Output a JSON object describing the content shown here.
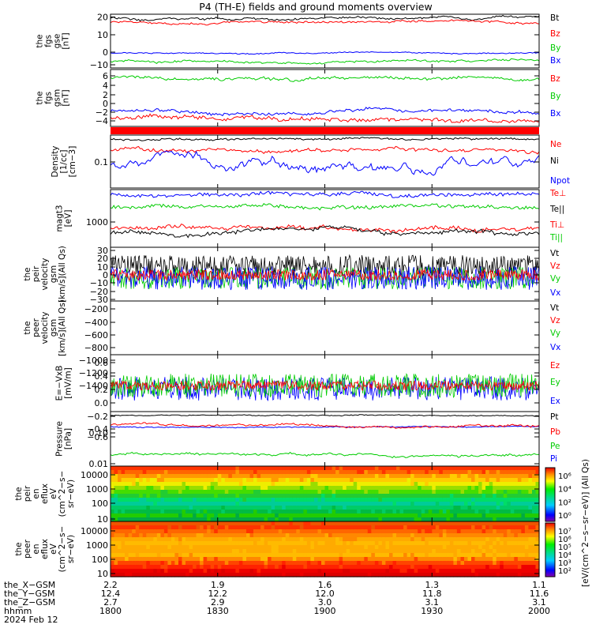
{
  "title": "P4 (TH-E) fields and ground moments overview",
  "panels": [
    {
      "id": "fgs-gse",
      "ylabel": [
        "the",
        "fgs",
        "gse",
        "[nT]"
      ],
      "yticks": [
        "20",
        "10",
        "0",
        "−10"
      ],
      "ytick_values": [
        20,
        10,
        0,
        -10
      ],
      "legend": [
        {
          "text": "Bt",
          "color": "#000000"
        },
        {
          "text": "Bz",
          "color": "#ff0000"
        },
        {
          "text": "By",
          "color": "#00cc00"
        },
        {
          "text": "Bx",
          "color": "#0000ff"
        }
      ]
    },
    {
      "id": "fgs-gsm",
      "ylabel": [
        "the",
        "fgs",
        "gsm",
        "[nT]"
      ],
      "yticks": [
        "6",
        "4",
        "2",
        "0",
        "−2",
        "−4",
        "−6"
      ],
      "ytick_values": [
        6,
        4,
        2,
        0,
        -2,
        -4,
        -6
      ],
      "legend": [
        {
          "text": "Bz",
          "color": "#ff0000"
        },
        {
          "text": "By",
          "color": "#00cc00"
        },
        {
          "text": "Bx",
          "color": "#0000ff"
        }
      ]
    },
    {
      "id": "density",
      "ylabel": [
        "Density",
        "[1/cc]",
        "[cm−3]"
      ],
      "yticks": [
        "0.1"
      ],
      "ytick_values": [
        0.1
      ],
      "legend": [
        {
          "text": "Ne",
          "color": "#ff0000"
        },
        {
          "text": "Ni",
          "color": "#000000"
        },
        {
          "text": "Npot",
          "color": "#0000ff"
        }
      ]
    },
    {
      "id": "temperature",
      "ylabel": [
        "magt3",
        "[eV]"
      ],
      "yticks": [
        "1000"
      ],
      "ytick_values": [
        1000
      ],
      "legend": [
        {
          "text": "Te⊥",
          "color": "#ff0000"
        },
        {
          "text": "Te||",
          "color": "#000000"
        },
        {
          "text": "Ti⊥",
          "color": "#ff0000"
        },
        {
          "text": "Ti||",
          "color": "#00cc00"
        }
      ]
    },
    {
      "id": "peir-velocity",
      "ylabel": [
        "the",
        "peir",
        "velocity",
        "gsm",
        "[km/s](All Qs)"
      ],
      "yticks": [
        "30",
        "20",
        "10",
        "0",
        "−10",
        "−20",
        "−30"
      ],
      "ytick_values": [
        30,
        20,
        10,
        0,
        -10,
        -20,
        -30
      ],
      "legend": [
        {
          "text": "Vt",
          "color": "#000000"
        },
        {
          "text": "Vz",
          "color": "#ff0000"
        },
        {
          "text": "Vy",
          "color": "#00cc00"
        },
        {
          "text": "Vx",
          "color": "#0000ff"
        }
      ]
    },
    {
      "id": "peer-velocity",
      "ylabel": [
        "the",
        "peer",
        "velocity",
        "gsm",
        "[km/s](All Qs)"
      ],
      "yticks": [
        "−200",
        "−400",
        "−600",
        "−800",
        "−1000",
        "−1200",
        "−1400"
      ],
      "ytick_values": [
        -200,
        -400,
        -600,
        -800,
        -1000,
        -1200,
        -1400
      ],
      "legend": [
        {
          "text": "Vt",
          "color": "#000000"
        },
        {
          "text": "Vz",
          "color": "#ff0000"
        },
        {
          "text": "Vy",
          "color": "#00cc00"
        },
        {
          "text": "Vx",
          "color": "#0000ff"
        }
      ]
    },
    {
      "id": "efield",
      "ylabel": [
        "E=−VxB",
        "[mV/m]"
      ],
      "yticks": [
        "0.6",
        "0.4",
        "0.2",
        "0.0",
        "−0.2",
        "−0.4",
        "−0.6"
      ],
      "ytick_values": [
        0.6,
        0.4,
        0.2,
        0.0,
        -0.2,
        -0.4,
        -0.6
      ],
      "legend": [
        {
          "text": "Ez",
          "color": "#ff0000"
        },
        {
          "text": "Ey",
          "color": "#00cc00"
        },
        {
          "text": "Ex",
          "color": "#0000ff"
        }
      ]
    },
    {
      "id": "pressure",
      "ylabel": [
        "Pressure",
        "[nPa]"
      ],
      "yticks": [
        "0.10",
        "0.01"
      ],
      "ytick_values": [
        0.1,
        0.01
      ],
      "legend": [
        {
          "text": "Pt",
          "color": "#000000"
        },
        {
          "text": "Pb",
          "color": "#ff0000"
        },
        {
          "text": "Pe",
          "color": "#00cc00"
        },
        {
          "text": "Pi",
          "color": "#0000ff"
        }
      ]
    },
    {
      "id": "peir-eflux",
      "ylabel": [
        "the",
        "peir",
        "en",
        "eflux",
        "eV",
        "(cm^2−s−",
        "sr−eV)"
      ],
      "yticks": [
        "10000",
        "1000",
        "100",
        "10"
      ],
      "ytick_values": [
        10000,
        1000,
        100,
        10
      ],
      "legend": []
    },
    {
      "id": "peer-eflux",
      "ylabel": [
        "the",
        "peer",
        "en",
        "eflux",
        "eV",
        "(cm^2−s−",
        "sr−eV)"
      ],
      "yticks": [
        "10000",
        "1000",
        "100",
        "10"
      ],
      "ytick_values": [
        10000,
        1000,
        100,
        10
      ],
      "legend": []
    }
  ],
  "colorbar": {
    "label": "[eV/(cm^2−s−sr−eV)] (All Qs)",
    "upper_ticks": [
      "10⁶",
      "10⁴",
      "10²",
      "10⁰"
    ],
    "lower_ticks": [
      "10⁷",
      "10⁶",
      "10⁵",
      "10⁴",
      "10³",
      "10²"
    ]
  },
  "footer": {
    "rows": [
      {
        "label": "the_X−GSM",
        "values": [
          "2.2",
          "1.9",
          "1.6",
          "1.3",
          "1.1"
        ]
      },
      {
        "label": "the_Y−GSM",
        "values": [
          "12.4",
          "12.2",
          "12.0",
          "11.8",
          "11.6"
        ]
      },
      {
        "label": "the_Z−GSM",
        "values": [
          "2.7",
          "2.9",
          "3.0",
          "3.1",
          "3.1"
        ]
      },
      {
        "label": "hhmm",
        "values": [
          "1800",
          "1830",
          "1900",
          "1930",
          "2000"
        ]
      }
    ],
    "date": "2024 Feb 12"
  },
  "chart_data": {
    "type": "line",
    "title": "P4 (TH-E) fields and ground moments overview",
    "x_ticks": [
      "1800",
      "1830",
      "1900",
      "1930",
      "2000"
    ],
    "xlabel": "hhmm",
    "xlim": [
      "1800",
      "2000"
    ],
    "grid": false,
    "legend_placement": "right",
    "series": [
      {
        "panel": "fgs-gse",
        "name": "Bt",
        "approx_level": 20
      },
      {
        "panel": "fgs-gse",
        "name": "Bz",
        "approx_level": 18
      },
      {
        "panel": "fgs-gse",
        "name": "By",
        "approx_level": -8
      },
      {
        "panel": "fgs-gse",
        "name": "Bx",
        "approx_level": -1
      },
      {
        "panel": "fgs-gsm",
        "name": "Bz",
        "approx_level": -5
      },
      {
        "panel": "fgs-gsm",
        "name": "By",
        "approx_level": 4
      },
      {
        "panel": "fgs-gsm",
        "name": "Bx",
        "approx_level": -3.5
      },
      {
        "panel": "density",
        "name": "Ni",
        "approx_level": 0.3
      },
      {
        "panel": "density",
        "name": "Ne",
        "approx_level": 0.2
      },
      {
        "panel": "density",
        "name": "Npot",
        "approx_level": 0.03
      },
      {
        "panel": "peir-velocity",
        "name": "Vt",
        "approx_level": 15
      },
      {
        "panel": "peir-velocity",
        "name": "Vz",
        "approx_level": 5
      },
      {
        "panel": "efield",
        "name": "Ez",
        "approx_level": 0.05
      },
      {
        "panel": "pressure",
        "name": "Pt",
        "approx_level": 0.2
      },
      {
        "panel": "pressure",
        "name": "Pb",
        "approx_level": 0.13
      },
      {
        "panel": "pressure",
        "name": "Pe",
        "approx_level": 0.015
      }
    ]
  }
}
